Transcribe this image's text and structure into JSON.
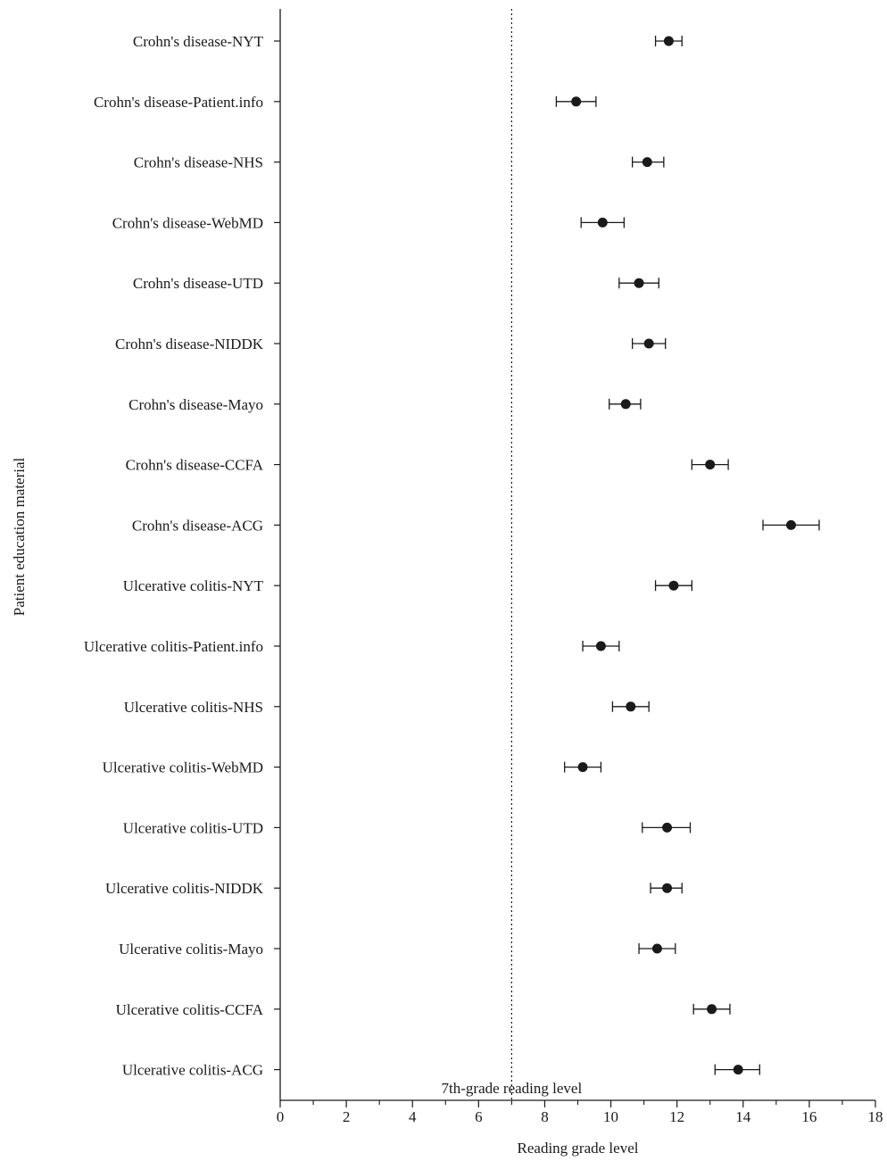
{
  "chart_data": {
    "type": "scatter",
    "xlabel": "Reading grade level",
    "ylabel": "Patient education material",
    "xlim": [
      0,
      18
    ],
    "x_ticks": [
      "0",
      "2",
      "4",
      "6",
      "8",
      "10",
      "12",
      "14",
      "16",
      "18"
    ],
    "grid": false,
    "reference_line": {
      "x": 7,
      "label": "7th-grade reading level"
    },
    "categories": [
      "Crohn's disease-NYT",
      "Crohn's disease-Patient.info",
      "Crohn's disease-NHS",
      "Crohn's disease-WebMD",
      "Crohn's disease-UTD",
      "Crohn's disease-NIDDK",
      "Crohn's disease-Mayo",
      "Crohn's disease-CCFA",
      "Crohn's disease-ACG",
      "Ulcerative colitis-NYT",
      "Ulcerative colitis-Patient.info",
      "Ulcerative colitis-NHS",
      "Ulcerative colitis-WebMD",
      "Ulcerative colitis-UTD",
      "Ulcerative colitis-NIDDK",
      "Ulcerative colitis-Mayo",
      "Ulcerative colitis-CCFA",
      "Ulcerative colitis-ACG"
    ],
    "values": [
      11.75,
      8.95,
      11.1,
      9.75,
      10.85,
      11.15,
      10.45,
      13.0,
      15.45,
      11.9,
      9.7,
      10.6,
      9.15,
      11.7,
      11.7,
      11.4,
      13.05,
      13.85
    ],
    "ci_lower": [
      11.35,
      8.35,
      10.65,
      9.1,
      10.25,
      10.65,
      9.95,
      12.45,
      14.6,
      11.35,
      9.15,
      10.05,
      8.6,
      10.95,
      11.2,
      10.85,
      12.5,
      13.15
    ],
    "ci_upper": [
      12.15,
      9.55,
      11.6,
      10.4,
      11.45,
      11.65,
      10.9,
      13.55,
      16.3,
      12.45,
      10.25,
      11.15,
      9.7,
      12.4,
      12.15,
      11.95,
      13.6,
      14.5
    ]
  }
}
